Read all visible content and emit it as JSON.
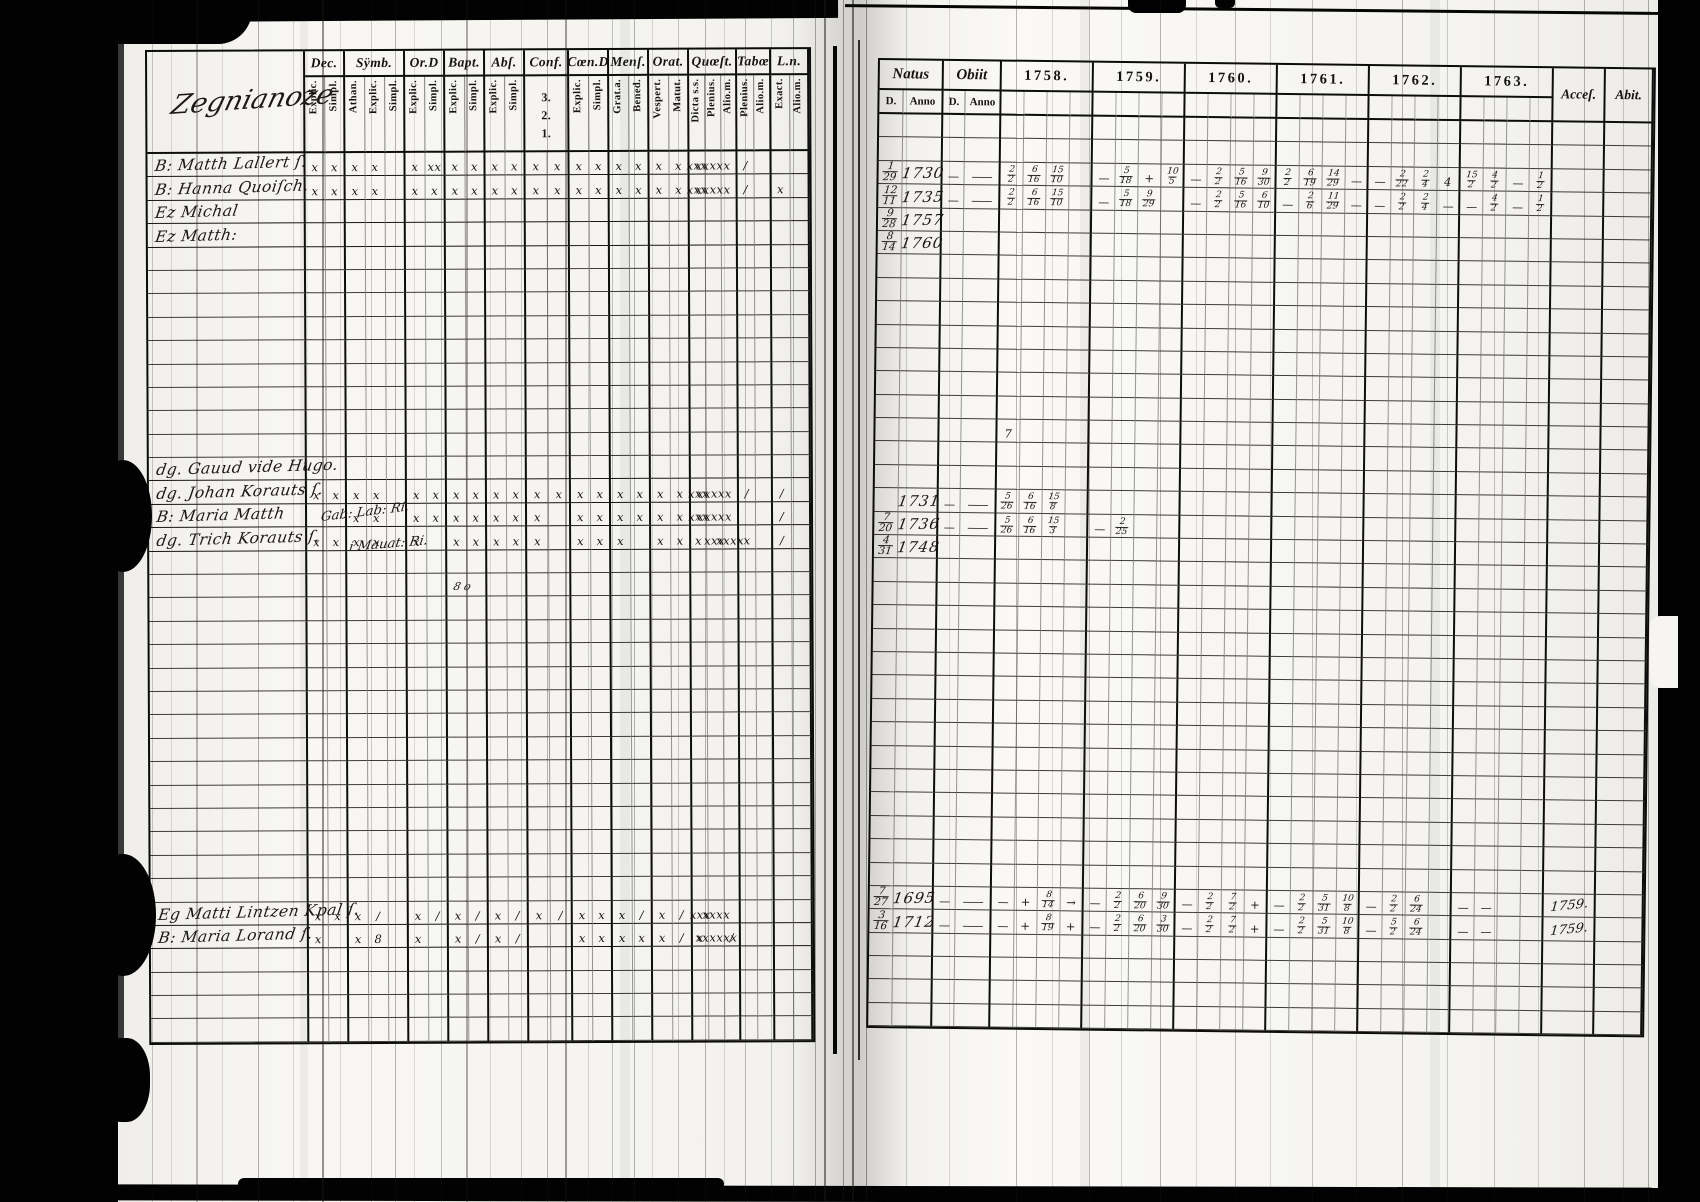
{
  "document_type": "scanned handwritten parish catechism register, two-page spread",
  "colors": {
    "paper": "#f7f6f2",
    "ink": "#161412",
    "edge_black": "#020202"
  },
  "left_page": {
    "heading_script": "Zegnianoze",
    "columns": [
      {
        "label": "Dec.",
        "subs": [
          "Explic.",
          "Simpl."
        ],
        "body_subs": 2
      },
      {
        "label": "Sÿmb.",
        "subs": [
          "Athan.",
          "Explic.",
          "Simpl."
        ],
        "body_subs": 3
      },
      {
        "label": "Or.D",
        "subs": [
          "Explic.",
          "Simpl."
        ],
        "body_subs": 2
      },
      {
        "label": "Bapt.",
        "subs": [
          "Explic.",
          "Simpl."
        ],
        "body_subs": 2
      },
      {
        "label": "Abſ.",
        "subs": [
          "Explic.",
          "Simpl."
        ],
        "body_subs": 2
      },
      {
        "label": "Conf.",
        "subs": [
          "3.",
          "2.",
          "1."
        ],
        "stacked": true,
        "body_subs": 2
      },
      {
        "label": "Cœn.D",
        "subs": [
          "Explic.",
          "Simpl."
        ],
        "body_subs": 2
      },
      {
        "label": "Menſ.",
        "subs": [
          "Grat.a.",
          "Bened."
        ],
        "body_subs": 2
      },
      {
        "label": "Orat.",
        "subs": [
          "Vespert.",
          "Matut."
        ],
        "body_subs": 2
      },
      {
        "label": "Quœſt.",
        "subs": [
          "Dicta s.s.",
          "Plenius.",
          "Alio.m."
        ],
        "body_subs": 3
      },
      {
        "label": "Tabœ",
        "subs": [
          "Plenius.",
          "Alio.m."
        ],
        "body_subs": 2
      },
      {
        "label": "L.n.",
        "subs": [
          "Exact.",
          "Alio.m."
        ],
        "body_subs": 2
      }
    ],
    "row_count": 38,
    "rows": [
      {
        "i": 0,
        "name": "B: Matth Lallert ſ.",
        "marks": {
          "0": [
            "x",
            "x"
          ],
          "1": [
            "x",
            "x",
            ""
          ],
          "2": [
            "x",
            "xx"
          ],
          "3": [
            "x",
            "x"
          ],
          "4": [
            "x",
            "x"
          ],
          "5": [
            "x",
            "x"
          ],
          "6": [
            "x",
            "x"
          ],
          "7": [
            "x",
            "x"
          ],
          "8": [
            "x",
            "x"
          ],
          "9": [
            "xxx",
            "xxxxx",
            ""
          ],
          "10": [
            "/",
            ""
          ],
          "11": [
            "",
            ""
          ]
        }
      },
      {
        "i": 1,
        "name": "B: Hanna Quoiſch.",
        "marks": {
          "0": [
            "x",
            "x"
          ],
          "1": [
            "x",
            "x",
            ""
          ],
          "2": [
            "x",
            "x"
          ],
          "3": [
            "x",
            "x"
          ],
          "4": [
            "x",
            "x"
          ],
          "5": [
            "x",
            "x"
          ],
          "6": [
            "x",
            "x"
          ],
          "7": [
            "x",
            "x"
          ],
          "8": [
            "x",
            "x"
          ],
          "9": [
            "xxx",
            "xxxxx",
            ""
          ],
          "10": [
            "/",
            ""
          ],
          "11": [
            "x",
            ""
          ]
        }
      },
      {
        "i": 2,
        "name": "Ez Michal",
        "marks": {}
      },
      {
        "i": 3,
        "name": "Ez Matth:",
        "marks": {}
      },
      {
        "i": 13,
        "name": "dg. Gauud vide Hugo.",
        "marks": {}
      },
      {
        "i": 14,
        "name": "dg. Johan Korauts ſ.",
        "marks": {
          "0": [
            "x",
            "x"
          ],
          "1": [
            "x",
            "x",
            ""
          ],
          "2": [
            "x",
            "x"
          ],
          "3": [
            "x",
            "x"
          ],
          "4": [
            "x",
            "x"
          ],
          "5": [
            "x",
            "x"
          ],
          "6": [
            "x",
            "x"
          ],
          "7": [
            "x",
            "x"
          ],
          "8": [
            "x",
            "x"
          ],
          "9": [
            "xxx",
            "xxxxx",
            ""
          ],
          "10": [
            "/",
            ""
          ],
          "11": [
            "/",
            ""
          ]
        }
      },
      {
        "i": 15,
        "name": "B: Maria Matth",
        "marks": {
          "0": [
            "",
            ""
          ],
          "1": [
            "x",
            "x",
            ""
          ],
          "2": [
            "x",
            "x"
          ],
          "3": [
            "x",
            "x"
          ],
          "4": [
            "x",
            "x"
          ],
          "5": [
            "x",
            ""
          ],
          "6": [
            "x",
            "x"
          ],
          "7": [
            "x",
            "x"
          ],
          "8": [
            "x",
            "x"
          ],
          "9": [
            "xxx",
            "xxxxx",
            ""
          ],
          "10": [
            "",
            ""
          ],
          "11": [
            "/",
            ""
          ]
        }
      },
      {
        "i": 16,
        "name": "dg. Trich Korauts ſ.",
        "marks": {
          "0": [
            "x",
            "x"
          ],
          "1": [
            "x",
            "x",
            ""
          ],
          "2": [
            "x",
            ""
          ],
          "3": [
            "x",
            "x"
          ],
          "4": [
            "x",
            "x"
          ],
          "5": [
            "x",
            ""
          ],
          "6": [
            "x",
            "x"
          ],
          "7": [
            "x",
            ""
          ],
          "8": [
            "x",
            "x"
          ],
          "9": [
            "x",
            "xxx",
            "xxxx"
          ],
          "10": [
            "x",
            ""
          ],
          "11": [
            "/",
            ""
          ]
        }
      },
      {
        "i": 32,
        "name": "Eg Matti Lintzen Kpal ſ.",
        "marks": {
          "0": [
            "x",
            "x"
          ],
          "1": [
            "x",
            "/",
            ""
          ],
          "2": [
            "x",
            "/"
          ],
          "3": [
            "x",
            "/"
          ],
          "4": [
            "x",
            "/"
          ],
          "5": [
            "x",
            "/"
          ],
          "6": [
            "x",
            "x"
          ],
          "7": [
            "x",
            "/"
          ],
          "8": [
            "x",
            "/"
          ],
          "9": [
            "xxx",
            "xxxx",
            ""
          ],
          "10": [
            "",
            ""
          ],
          "11": [
            "",
            ""
          ]
        }
      },
      {
        "i": 33,
        "name": "B: Maria Lorand ſ.",
        "marks": {
          "0": [
            "x",
            ""
          ],
          "1": [
            "x",
            "8",
            ""
          ],
          "2": [
            "x",
            ""
          ],
          "3": [
            "x",
            "/"
          ],
          "4": [
            "x",
            "/"
          ],
          "5": [
            "",
            ""
          ],
          "6": [
            "x",
            "x"
          ],
          "7": [
            "x",
            "x"
          ],
          "8": [
            "x",
            "/"
          ],
          "9": [
            "x",
            "xxxxxx",
            "/"
          ],
          "10": [
            "",
            ""
          ],
          "11": [
            "",
            ""
          ]
        }
      }
    ],
    "annotations": [
      {
        "text": "Gab: Lab: Ri."
      },
      {
        "text": "i Mauat: Ri."
      },
      {
        "text": "8 o"
      }
    ]
  },
  "right_page": {
    "header": {
      "natus": "Natus",
      "obiit": "Obiit",
      "d": "D.",
      "anno": "Anno",
      "years": [
        "1758.",
        "1759.",
        "1760.",
        "1761.",
        "1762.",
        "1763."
      ],
      "acces": "Acceſ.",
      "abit": "Abit."
    },
    "row_count": 39,
    "rows": [
      {
        "i": 2,
        "nd": "1/29",
        "na": "1730",
        "od": "—",
        "oa": "——",
        "y": [
          [
            "2/2",
            "6/16",
            "15/10",
            ""
          ],
          [
            "—",
            "5/18",
            "+",
            "10/5"
          ],
          [
            "—",
            "2/2",
            "5/16",
            "9/30"
          ],
          [
            "2/2",
            "6/19",
            "14/29",
            "—"
          ],
          [
            "—",
            "2/22",
            "2/4",
            "4"
          ],
          [
            "15/2",
            "4/2",
            "—",
            "1/2"
          ]
        ],
        "acc": "",
        "ab": ""
      },
      {
        "i": 3,
        "nd": "12/11",
        "na": "1735",
        "od": "—",
        "oa": "——",
        "y": [
          [
            "2/2",
            "6/16",
            "15/10",
            ""
          ],
          [
            "—",
            "5/18",
            "9/29",
            ""
          ],
          [
            "—",
            "2/2",
            "5/16",
            "6/10"
          ],
          [
            "—",
            "2/6",
            "11/29",
            "—"
          ],
          [
            "—",
            "2/2",
            "2/4",
            "—"
          ],
          [
            "—",
            "4/2",
            "—",
            "1/2"
          ]
        ],
        "acc": "",
        "ab": ""
      },
      {
        "i": 4,
        "nd": "9/28",
        "na": "1757",
        "od": "",
        "oa": "",
        "y": [
          [],
          [],
          [],
          [],
          [],
          []
        ],
        "acc": "",
        "ab": ""
      },
      {
        "i": 5,
        "nd": "8/14",
        "na": "1760",
        "od": "",
        "oa": "",
        "y": [
          [],
          [],
          [],
          [],
          [],
          []
        ],
        "acc": "",
        "ab": ""
      },
      {
        "i": 13,
        "nd": "",
        "na": "",
        "od": "",
        "oa": "",
        "y": [
          [
            "7",
            "",
            "",
            ""
          ],
          [],
          [],
          [],
          [],
          []
        ],
        "acc": "",
        "ab": ""
      },
      {
        "i": 16,
        "nd": "",
        "na": "1731",
        "od": "—",
        "oa": "——",
        "y": [
          [
            "5/26",
            "6/16",
            "15/8",
            ""
          ],
          [],
          [],
          [],
          [],
          []
        ],
        "acc": "",
        "ab": ""
      },
      {
        "i": 17,
        "nd": "7/20",
        "na": "1736",
        "od": "—",
        "oa": "——",
        "y": [
          [
            "5/26",
            "6/16",
            "15/3",
            ""
          ],
          [
            "—",
            "2/25",
            "",
            ""
          ],
          [],
          [],
          [],
          []
        ],
        "acc": "",
        "ab": ""
      },
      {
        "i": 18,
        "nd": "4/31",
        "na": "1748",
        "od": "",
        "oa": "",
        "y": [
          [],
          [],
          [],
          [],
          [],
          []
        ],
        "acc": "",
        "ab": ""
      },
      {
        "i": 33,
        "nd": "7/27",
        "na": "1695",
        "od": "—",
        "oa": "——",
        "y": [
          [
            "—",
            "+",
            "8/14",
            "→"
          ],
          [
            "—",
            "2/2",
            "6/20",
            "9/30"
          ],
          [
            "—",
            "2/2",
            "7/2",
            "+"
          ],
          [
            "—",
            "2/2",
            "5/31",
            "10/8"
          ],
          [
            "—",
            "2/2",
            "6/24",
            ""
          ],
          [
            "—",
            "—",
            "",
            ""
          ]
        ],
        "acc": "1759.",
        "ab": ""
      },
      {
        "i": 34,
        "nd": "3/16",
        "na": "1712",
        "od": "—",
        "oa": "——",
        "y": [
          [
            "—",
            "+",
            "8/19",
            "+"
          ],
          [
            "—",
            "2/2",
            "6/20",
            "3/30"
          ],
          [
            "—",
            "2/2",
            "7/2",
            "+"
          ],
          [
            "—",
            "2/2",
            "5/31",
            "10/8"
          ],
          [
            "—",
            "5/2",
            "6/24",
            ""
          ],
          [
            "—",
            "—",
            "",
            ""
          ]
        ],
        "acc": "1759.",
        "ab": ""
      }
    ]
  }
}
